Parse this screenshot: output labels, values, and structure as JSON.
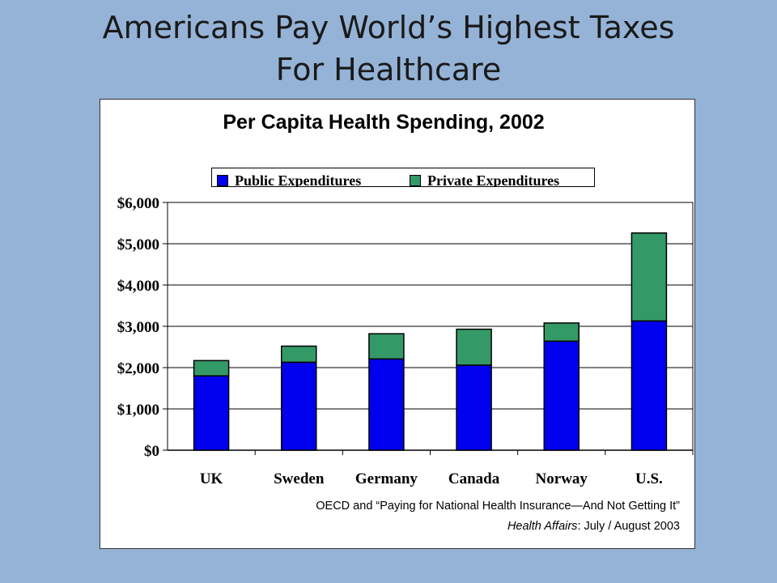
{
  "slide": {
    "title_line1": "Americans Pay World’s Highest Taxes",
    "title_line2": "For Healthcare"
  },
  "source": {
    "line1": "OECD and “Paying for National Health Insurance—And Not Getting It”",
    "line2_italic": "Health Affairs",
    "line2_rest": ": July / August 2003"
  },
  "colors": {
    "background": "#95b3d7",
    "public": "#0000ee",
    "private": "#339966"
  },
  "chart_data": {
    "type": "bar",
    "stacked": true,
    "title": "Per Capita Health Spending, 2002",
    "xlabel": "",
    "ylabel": "",
    "categories": [
      "UK",
      "Sweden",
      "Germany",
      "Canada",
      "Norway",
      "U.S."
    ],
    "series": [
      {
        "name": "Public Expenditures",
        "values": [
          1800,
          2130,
          2210,
          2060,
          2640,
          3130
        ]
      },
      {
        "name": "Private Expenditures",
        "values": [
          370,
          390,
          610,
          870,
          440,
          2130
        ]
      }
    ],
    "ylim": [
      0,
      6000
    ],
    "yticks": [
      0,
      1000,
      2000,
      3000,
      4000,
      5000,
      6000
    ],
    "ytick_labels": [
      "$0",
      "$1,000",
      "$2,000",
      "$3,000",
      "$4,000",
      "$5,000",
      "$6,000"
    ],
    "grid": true,
    "legend_position": "top"
  }
}
